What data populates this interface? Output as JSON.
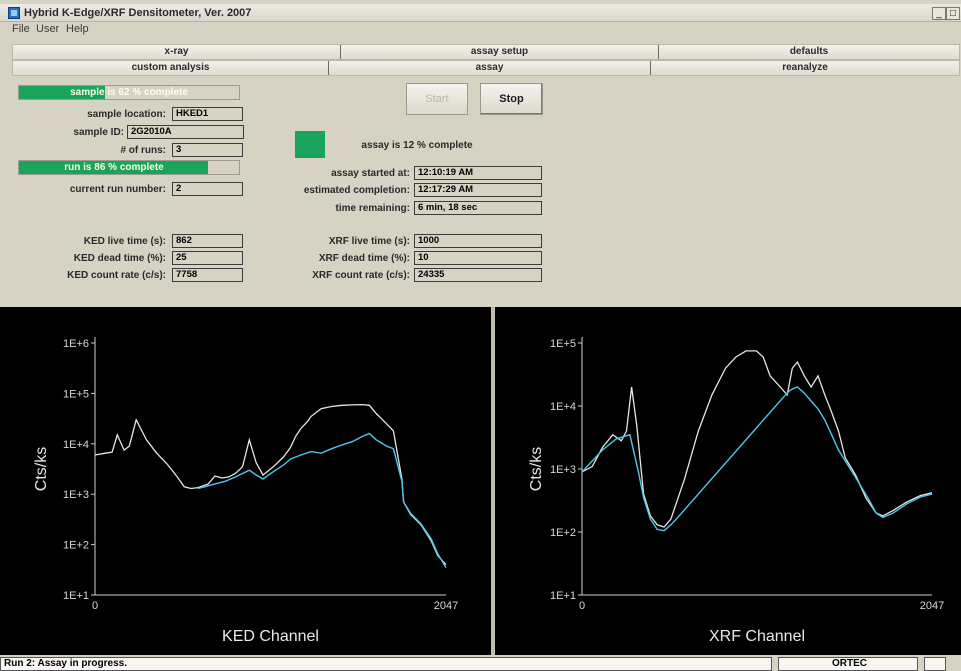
{
  "window": {
    "title": "Hybrid K-Edge/XRF Densitometer, Ver. 2007",
    "minimize_glyph": "_",
    "maximize_glyph": "□"
  },
  "menu": {
    "file": "File",
    "user": "User",
    "help": "Help"
  },
  "tabs_row1": [
    "x-ray",
    "assay setup",
    "defaults"
  ],
  "tabs_row2": [
    "custom analysis",
    "assay",
    "reanalyze"
  ],
  "sample_progress": {
    "label": "sample is 62 % complete",
    "value": 0.62
  },
  "run_progress": {
    "label": "run is 86 % complete",
    "value": 0.86
  },
  "fields_left": {
    "sample_location_label": "sample location:",
    "sample_location": "HKED1",
    "sample_id_label": "sample ID:",
    "sample_id": "2G2010A",
    "num_runs_label": "# of runs:",
    "num_runs": "3",
    "current_run_label": "current run number:",
    "current_run": "2",
    "ked_live_label": "KED live time (s):",
    "ked_live": "862",
    "ked_dead_label": "KED dead time (%):",
    "ked_dead": "25",
    "ked_rate_label": "KED count rate (c/s):",
    "ked_rate": "7758"
  },
  "buttons": {
    "start": "Start",
    "stop": "Stop"
  },
  "assay": {
    "progress_text": "assay is 12 % complete",
    "started_label": "assay started at:",
    "started": "12:10:19 AM",
    "est_label": "estimated completion:",
    "est": "12:17:29 AM",
    "remaining_label": "time remaining:",
    "remaining": "6 min, 18 sec",
    "xrf_live_label": "XRF live time (s):",
    "xrf_live": "1000",
    "xrf_dead_label": "XRF dead time (%):",
    "xrf_dead": "10",
    "xrf_rate_label": "XRF count rate (c/s):",
    "xrf_rate": "24335"
  },
  "colors": {
    "progress_green": "#1aa35a",
    "spectrum_white": "#e6e6e6",
    "spectrum_cyan": "#4cc7ee",
    "plot_bg": "#000000"
  },
  "chart_data": [
    {
      "type": "line",
      "title": "",
      "xlabel": "KED Channel",
      "ylabel": "Cts/ks",
      "yscale": "log",
      "xlim": [
        0,
        2047
      ],
      "ylim": [
        10,
        1000000
      ],
      "x_ticks": [
        "0",
        "2047"
      ],
      "y_ticks": [
        "1E+1",
        "1E+2",
        "1E+3",
        "1E+4",
        "1E+5",
        "1E+6"
      ],
      "series": [
        {
          "color": "#e6e6e6",
          "x": [
            0,
            60,
            100,
            130,
            170,
            200,
            240,
            300,
            360,
            420,
            480,
            520,
            560,
            600,
            640,
            660,
            700,
            740,
            780,
            820,
            860,
            900,
            940,
            980,
            1040,
            1100,
            1140,
            1170,
            1200,
            1240,
            1260,
            1290,
            1320,
            1380,
            1440,
            1500,
            1560,
            1600,
            1640,
            1700,
            1740,
            1790,
            1800,
            1840,
            1900,
            1960,
            2000,
            2047
          ],
          "y": [
            6000,
            6500,
            6800,
            15000,
            7500,
            9000,
            30000,
            12000,
            6500,
            4000,
            2200,
            1400,
            1300,
            1350,
            1500,
            1600,
            2300,
            2100,
            2200,
            2600,
            3500,
            12000,
            4200,
            2400,
            3500,
            5500,
            8500,
            14000,
            20000,
            28000,
            35000,
            42000,
            50000,
            55000,
            58000,
            59000,
            60000,
            58000,
            40000,
            25000,
            18000,
            2000,
            700,
            400,
            250,
            120,
            60,
            40
          ]
        },
        {
          "color": "#4cc7ee",
          "x": [
            600,
            640,
            700,
            760,
            820,
            900,
            940,
            980,
            1040,
            1100,
            1140,
            1200,
            1260,
            1320,
            1380,
            1440,
            1500,
            1560,
            1600,
            1640,
            1700,
            1740,
            1790,
            1800,
            1840,
            1900,
            1960,
            2000,
            2047
          ],
          "y": [
            1300,
            1400,
            1600,
            1800,
            2200,
            3000,
            2400,
            2000,
            2800,
            3800,
            5000,
            6000,
            7000,
            6500,
            8000,
            9500,
            11000,
            14000,
            16000,
            12000,
            9000,
            8000,
            1800,
            700,
            420,
            260,
            130,
            65,
            35
          ]
        }
      ]
    },
    {
      "type": "line",
      "title": "",
      "xlabel": "XRF Channel",
      "ylabel": "Cts/ks",
      "yscale": "log",
      "xlim": [
        0,
        2047
      ],
      "ylim": [
        10,
        100000
      ],
      "x_ticks": [
        "0",
        "2047"
      ],
      "y_ticks": [
        "1E+1",
        "1E+2",
        "1E+3",
        "1E+4",
        "1E+5"
      ],
      "series": [
        {
          "color": "#e6e6e6",
          "x": [
            0,
            60,
            120,
            180,
            230,
            260,
            290,
            320,
            360,
            400,
            440,
            480,
            520,
            600,
            680,
            760,
            840,
            900,
            960,
            1020,
            1060,
            1100,
            1160,
            1200,
            1230,
            1260,
            1300,
            1340,
            1380,
            1420,
            1460,
            1500,
            1540,
            1600,
            1660,
            1720,
            1760,
            1820,
            1900,
            1980,
            2047
          ],
          "y": [
            900,
            1100,
            2200,
            3500,
            2800,
            4000,
            20000,
            5000,
            400,
            180,
            130,
            120,
            160,
            700,
            4000,
            15000,
            40000,
            60000,
            75000,
            75000,
            60000,
            30000,
            20000,
            15000,
            40000,
            50000,
            30000,
            20000,
            30000,
            15000,
            8000,
            4000,
            1500,
            800,
            350,
            200,
            180,
            220,
            300,
            380,
            420
          ]
        },
        {
          "color": "#4cc7ee",
          "x": [
            0,
            120,
            200,
            280,
            330,
            360,
            400,
            440,
            480,
            520,
            560,
            1180,
            1220,
            1260,
            1300,
            1340,
            1380,
            1420,
            1460,
            1500,
            1560,
            1620,
            1680,
            1720,
            1760,
            1820,
            1900,
            1980,
            2047
          ],
          "y": [
            900,
            2000,
            3000,
            3500,
            900,
            350,
            160,
            110,
            105,
            130,
            170,
            14000,
            18000,
            20000,
            16000,
            12000,
            9000,
            6000,
            3500,
            2000,
            1100,
            600,
            320,
            200,
            170,
            200,
            280,
            360,
            400
          ]
        }
      ]
    }
  ],
  "status": {
    "message": "Run 2: Assay in progress.",
    "vendor": "ORTEC"
  }
}
